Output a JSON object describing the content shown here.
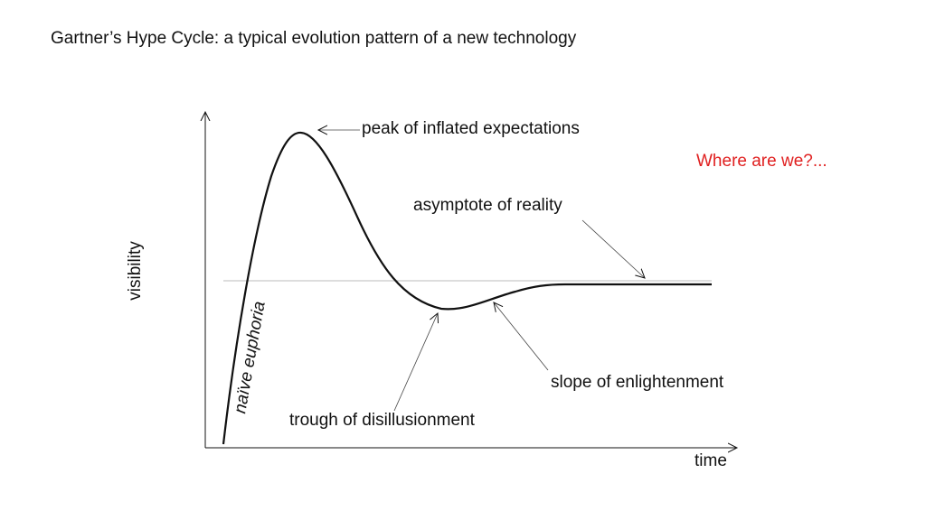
{
  "title": "Gartner’s Hype Cycle: a typical evolution pattern of a new technology",
  "axes": {
    "y_label": "visibility",
    "x_label": "time"
  },
  "annotations": {
    "peak": "peak of inflated expectations",
    "asymptote": "asymptote of reality",
    "trough": "trough of disillusionment",
    "slope": "slope of enlightenment",
    "naive": "naïve euphoria",
    "question": "Where are we?..."
  },
  "colors": {
    "question": "#e02020",
    "curve": "#111111",
    "reference_line": "#bbbbbb"
  }
}
